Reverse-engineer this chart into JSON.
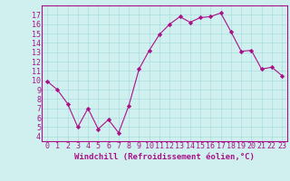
{
  "x": [
    0,
    1,
    2,
    3,
    4,
    5,
    6,
    7,
    8,
    9,
    10,
    11,
    12,
    13,
    14,
    15,
    16,
    17,
    18,
    19,
    20,
    21,
    22,
    23
  ],
  "y": [
    9.9,
    9.0,
    7.5,
    5.0,
    7.0,
    4.8,
    5.8,
    4.4,
    7.3,
    11.2,
    13.2,
    14.9,
    16.0,
    16.8,
    16.2,
    16.7,
    16.8,
    17.2,
    15.2,
    13.1,
    13.2,
    11.2,
    11.4,
    10.5
  ],
  "line_color": "#aa1188",
  "marker": "D",
  "marker_size": 2.2,
  "bg_color": "#d0f0f0",
  "grid_color": "#aadddd",
  "xlabel": "Windchill (Refroidissement éolien,°C)",
  "xlabel_color": "#aa1188",
  "xlabel_fontsize": 6.5,
  "tick_fontsize": 6.0,
  "ylim": [
    3.5,
    18.0
  ],
  "yticks": [
    4,
    5,
    6,
    7,
    8,
    9,
    10,
    11,
    12,
    13,
    14,
    15,
    16,
    17
  ],
  "xticks": [
    0,
    1,
    2,
    3,
    4,
    5,
    6,
    7,
    8,
    9,
    10,
    11,
    12,
    13,
    14,
    15,
    16,
    17,
    18,
    19,
    20,
    21,
    22,
    23
  ],
  "spine_color": "#aa1188",
  "line_width": 0.8
}
